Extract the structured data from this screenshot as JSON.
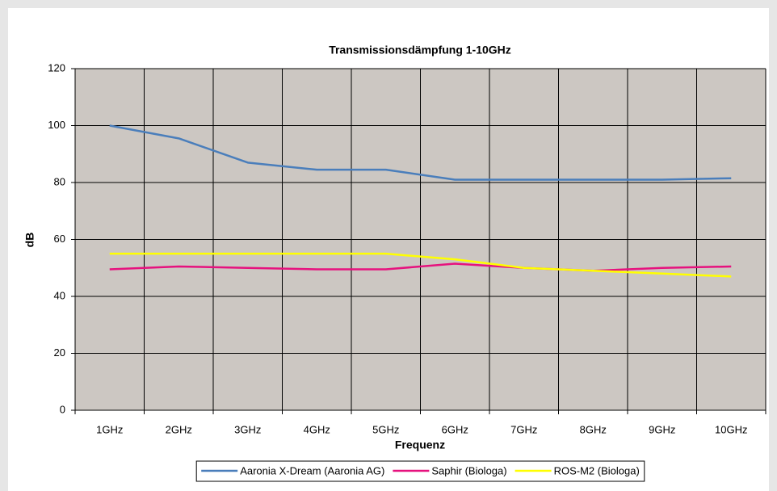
{
  "chart_data": {
    "type": "line",
    "title": "Transmissionsdämpfung 1-10GHz",
    "x_label": "Frequenz",
    "y_label": "dB",
    "categories": [
      "1GHz",
      "2GHz",
      "3GHz",
      "4GHz",
      "5GHz",
      "6GHz",
      "7GHz",
      "8GHz",
      "9GHz",
      "10GHz"
    ],
    "series": [
      {
        "name": "Aaronia X-Dream (Aaronia AG)",
        "color": "#4a7ebb",
        "values": [
          100,
          95.5,
          87,
          84.5,
          84.5,
          81,
          81,
          81,
          81,
          81.5
        ]
      },
      {
        "name": "Saphir (Biologa)",
        "color": "#e6127e",
        "values": [
          49.5,
          50.5,
          50,
          49.5,
          49.5,
          51.5,
          50,
          49,
          50,
          50.5
        ]
      },
      {
        "name": "ROS-M2 (Biologa)",
        "color": "#ffff00",
        "values": [
          55,
          55,
          55,
          55,
          55,
          53,
          50,
          49,
          48,
          47
        ]
      }
    ],
    "ylim": [
      0,
      120
    ],
    "yticks": [
      0,
      20,
      40,
      60,
      80,
      100,
      120
    ],
    "grid": true
  }
}
